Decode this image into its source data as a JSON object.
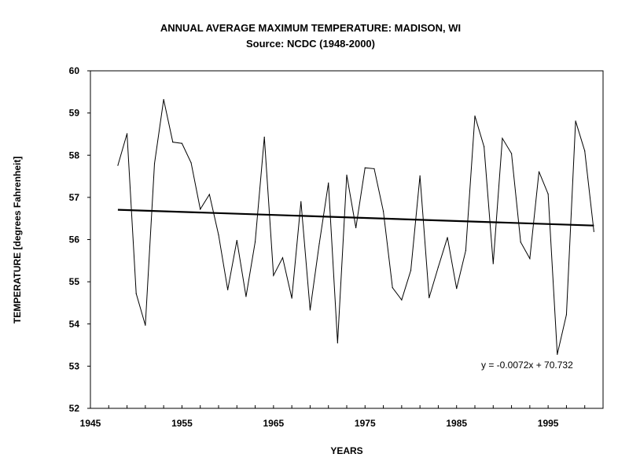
{
  "chart_data": {
    "type": "line",
    "title": "ANNUAL AVERAGE MAXIMUM TEMPERATURE: MADISON, WI",
    "subtitle": "Source: NCDC (1948-2000)",
    "xlabel": "YEARS",
    "ylabel": "TEMPERATURE [degrees Fahrenheit]",
    "xlim": [
      1945,
      2001
    ],
    "ylim": [
      52,
      60
    ],
    "x_ticks": [
      "1945",
      "1955",
      "1965",
      "1975",
      "1985",
      "1995"
    ],
    "y_ticks": [
      "52",
      "53",
      "54",
      "55",
      "56",
      "57",
      "58",
      "59",
      "60"
    ],
    "grid": false,
    "legend": "none",
    "x": [
      1948,
      1949,
      1950,
      1951,
      1952,
      1953,
      1954,
      1955,
      1956,
      1957,
      1958,
      1959,
      1960,
      1961,
      1962,
      1963,
      1964,
      1965,
      1966,
      1967,
      1968,
      1969,
      1970,
      1971,
      1972,
      1973,
      1974,
      1975,
      1976,
      1977,
      1978,
      1979,
      1980,
      1981,
      1982,
      1983,
      1984,
      1985,
      1986,
      1987,
      1988,
      1989,
      1990,
      1991,
      1992,
      1993,
      1994,
      1995,
      1996,
      1997,
      1998,
      1999,
      2000
    ],
    "series": [
      {
        "values": [
          57.76,
          58.51,
          54.72,
          53.97,
          57.8,
          59.32,
          58.31,
          58.28,
          57.82,
          56.72,
          57.07,
          56.11,
          54.81,
          55.98,
          54.65,
          55.95,
          58.43,
          55.15,
          55.57,
          54.61,
          56.9,
          54.33,
          55.9,
          57.34,
          53.55,
          57.53,
          56.28,
          57.7,
          57.68,
          56.67,
          54.86,
          54.57,
          55.27,
          57.51,
          54.62,
          55.35,
          56.05,
          54.84,
          55.74,
          58.93,
          58.2,
          55.43,
          58.4,
          58.04,
          55.94,
          55.55,
          57.61,
          57.08,
          53.28,
          54.22,
          58.81,
          58.1,
          56.19
        ],
        "color": "#000000"
      }
    ],
    "trendline": {
      "slope": -0.0072,
      "intercept": 70.732,
      "label": "y = -0.0072x + 70.732",
      "color": "#000000"
    }
  }
}
